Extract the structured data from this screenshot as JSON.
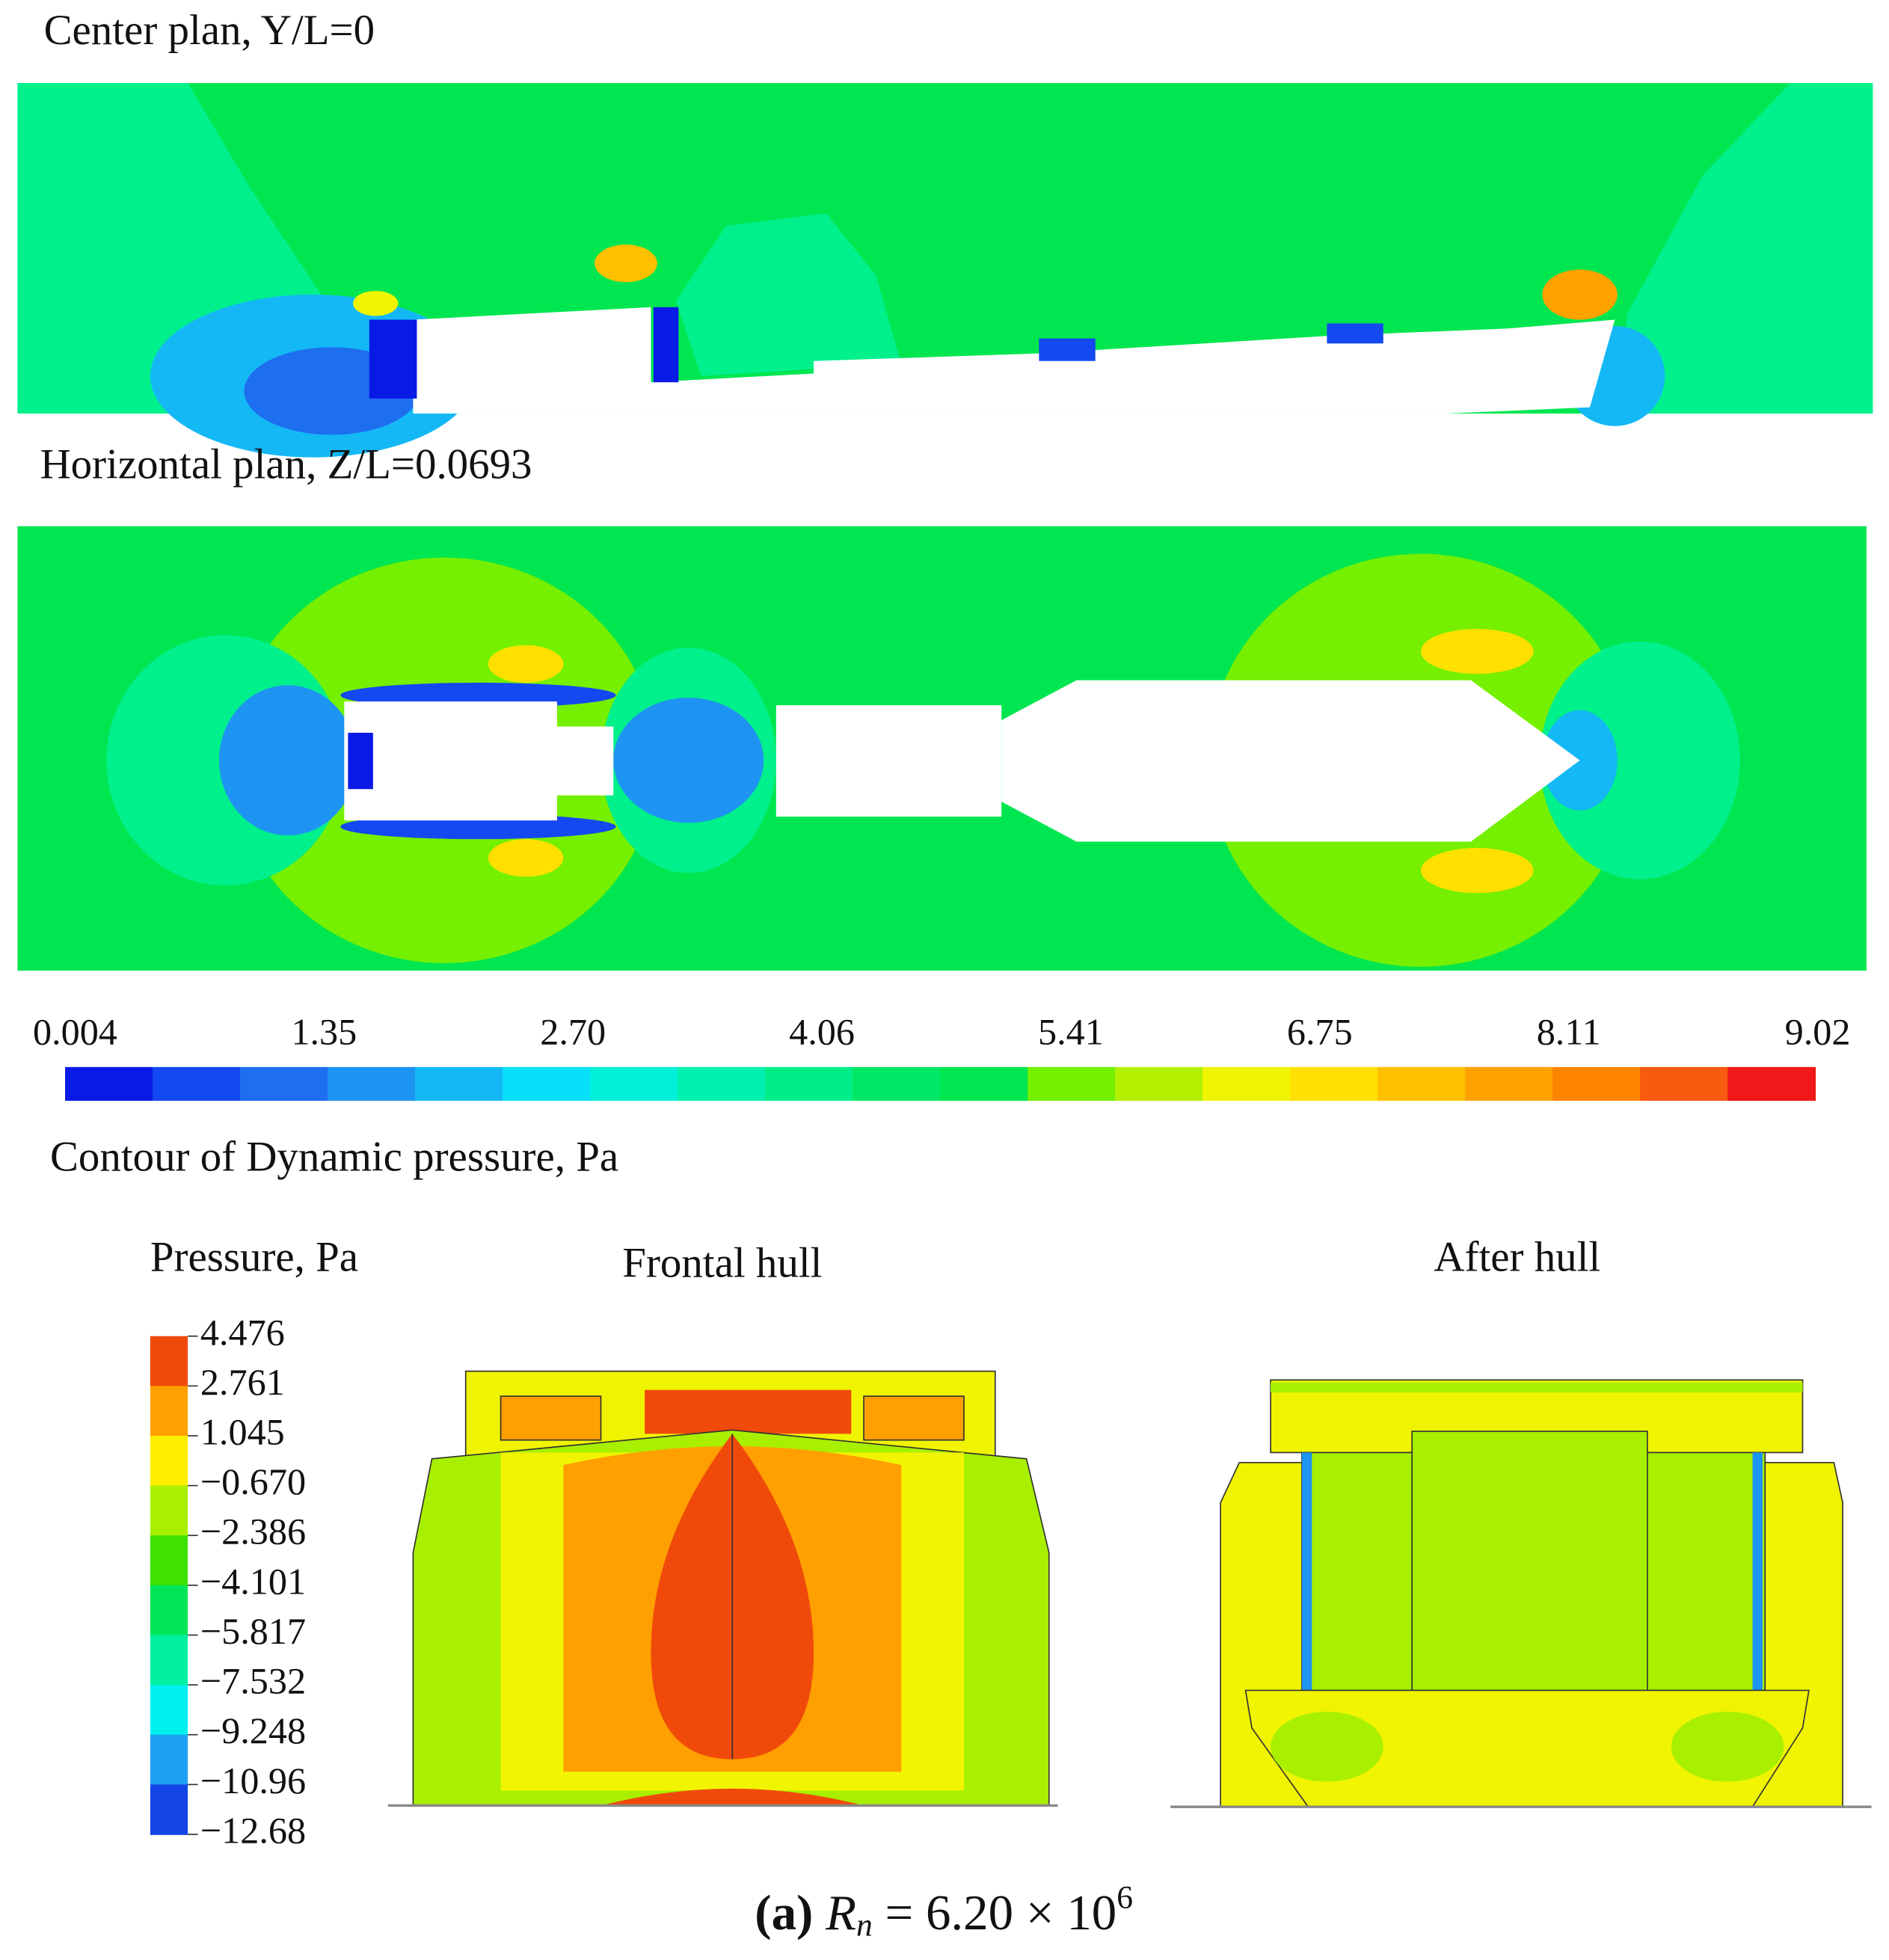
{
  "panels": [
    {
      "title": "Center plan, Y/L=0"
    },
    {
      "title": "Horizontal plan, Z/L=0.0693"
    }
  ],
  "colorbar": {
    "labels": [
      "0.004",
      "1.35",
      "2.70",
      "4.06",
      "5.41",
      "6.75",
      "8.11",
      "9.02"
    ],
    "colors": [
      "#0a1ae6",
      "#1448f0",
      "#1e6ef0",
      "#1e94f2",
      "#14b8f5",
      "#08e0fa",
      "#00f0d8",
      "#00f0b0",
      "#00ee8a",
      "#00e866",
      "#00e650",
      "#74f000",
      "#b4f000",
      "#f0f400",
      "#ffe000",
      "#ffc000",
      "#ffa200",
      "#ff8400",
      "#f85a10",
      "#f01818"
    ],
    "caption": "Contour of Dynamic pressure, Pa"
  },
  "pressure_legend": {
    "title": "Pressure, Pa",
    "labels": [
      "4.476",
      "2.761",
      "1.045",
      "−0.670",
      "−2.386",
      "−4.101",
      "−5.817",
      "−7.532",
      "−9.248",
      "−10.96",
      "−12.68"
    ],
    "colors": [
      "#f04a0a",
      "#ffa000",
      "#ffee00",
      "#a8f000",
      "#40e000",
      "#00e658",
      "#00f0a0",
      "#00f0f0",
      "#1ea0f0",
      "#1446e6"
    ]
  },
  "views": [
    {
      "title": "Frontal hull"
    },
    {
      "title": "After hull"
    }
  ],
  "caption": {
    "label": "(a)",
    "symbol": "R",
    "subscript": "n",
    "text": " = 6.20 × 10",
    "superscript": "6"
  }
}
